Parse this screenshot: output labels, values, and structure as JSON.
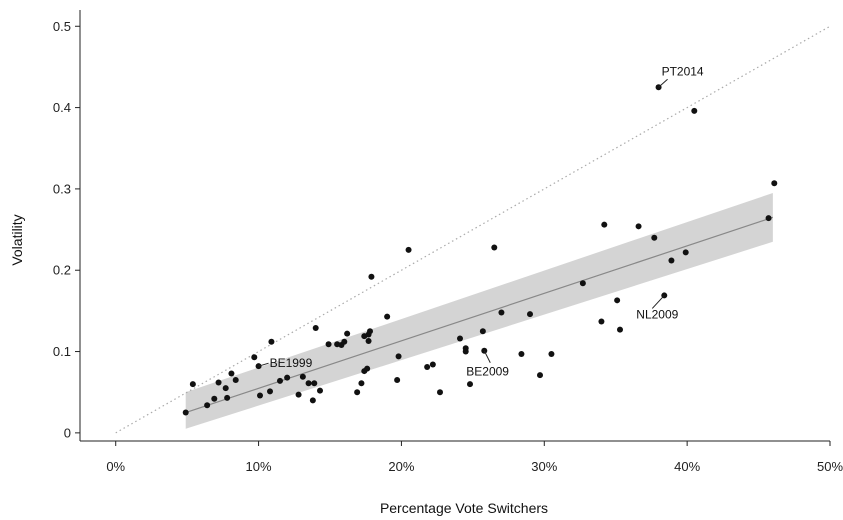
{
  "chart_data": {
    "type": "scatter",
    "xlabel": "Percentage Vote Switchers",
    "ylabel": "Volatility",
    "xlim": [
      -0.025,
      0.5
    ],
    "ylim": [
      -0.01,
      0.52
    ],
    "x_ticks": [
      0,
      0.1,
      0.2,
      0.3,
      0.4,
      0.5
    ],
    "x_tick_labels": [
      "0%",
      "10%",
      "20%",
      "30%",
      "40%",
      "50%"
    ],
    "y_ticks": [
      0,
      0.1,
      0.2,
      0.3,
      0.4,
      0.5
    ],
    "y_tick_labels": [
      "0",
      "0.1",
      "0.2",
      "0.3",
      "0.4",
      "0.5"
    ],
    "grid": false,
    "colors": {
      "points": "#111111",
      "fit_line": "#888888",
      "band": "#d4d4d4",
      "reference_line": "#aaaaaa"
    },
    "reference_line": {
      "style": "dotted",
      "x": [
        0,
        0.5
      ],
      "y": [
        0,
        0.5
      ]
    },
    "fit": {
      "x": [
        0.049,
        0.46
      ],
      "y": [
        0.025,
        0.265
      ]
    },
    "confidence_band": {
      "x": [
        0.049,
        0.46
      ],
      "lower": [
        0.005,
        0.235
      ],
      "upper": [
        0.05,
        0.295
      ]
    },
    "points": [
      {
        "x": 0.049,
        "y": 0.025
      },
      {
        "x": 0.054,
        "y": 0.06
      },
      {
        "x": 0.064,
        "y": 0.034
      },
      {
        "x": 0.069,
        "y": 0.042
      },
      {
        "x": 0.072,
        "y": 0.062
      },
      {
        "x": 0.077,
        "y": 0.055
      },
      {
        "x": 0.078,
        "y": 0.043
      },
      {
        "x": 0.081,
        "y": 0.073
      },
      {
        "x": 0.084,
        "y": 0.065
      },
      {
        "x": 0.097,
        "y": 0.093
      },
      {
        "x": 0.1,
        "y": 0.082
      },
      {
        "x": 0.101,
        "y": 0.046
      },
      {
        "x": 0.108,
        "y": 0.051
      },
      {
        "x": 0.109,
        "y": 0.112
      },
      {
        "x": 0.115,
        "y": 0.064
      },
      {
        "x": 0.12,
        "y": 0.068
      },
      {
        "x": 0.128,
        "y": 0.047
      },
      {
        "x": 0.131,
        "y": 0.069
      },
      {
        "x": 0.135,
        "y": 0.061
      },
      {
        "x": 0.138,
        "y": 0.04
      },
      {
        "x": 0.139,
        "y": 0.061
      },
      {
        "x": 0.14,
        "y": 0.129
      },
      {
        "x": 0.143,
        "y": 0.052
      },
      {
        "x": 0.149,
        "y": 0.109
      },
      {
        "x": 0.155,
        "y": 0.109
      },
      {
        "x": 0.158,
        "y": 0.108
      },
      {
        "x": 0.16,
        "y": 0.112
      },
      {
        "x": 0.162,
        "y": 0.122
      },
      {
        "x": 0.169,
        "y": 0.05
      },
      {
        "x": 0.172,
        "y": 0.061
      },
      {
        "x": 0.174,
        "y": 0.076
      },
      {
        "x": 0.174,
        "y": 0.119
      },
      {
        "x": 0.176,
        "y": 0.079
      },
      {
        "x": 0.177,
        "y": 0.121
      },
      {
        "x": 0.177,
        "y": 0.113
      },
      {
        "x": 0.178,
        "y": 0.125
      },
      {
        "x": 0.179,
        "y": 0.192
      },
      {
        "x": 0.19,
        "y": 0.143
      },
      {
        "x": 0.197,
        "y": 0.065
      },
      {
        "x": 0.198,
        "y": 0.094
      },
      {
        "x": 0.205,
        "y": 0.225
      },
      {
        "x": 0.218,
        "y": 0.081
      },
      {
        "x": 0.222,
        "y": 0.084
      },
      {
        "x": 0.227,
        "y": 0.05
      },
      {
        "x": 0.241,
        "y": 0.116
      },
      {
        "x": 0.245,
        "y": 0.104
      },
      {
        "x": 0.245,
        "y": 0.1
      },
      {
        "x": 0.248,
        "y": 0.06
      },
      {
        "x": 0.257,
        "y": 0.125
      },
      {
        "x": 0.258,
        "y": 0.101
      },
      {
        "x": 0.265,
        "y": 0.228
      },
      {
        "x": 0.27,
        "y": 0.148
      },
      {
        "x": 0.284,
        "y": 0.097
      },
      {
        "x": 0.29,
        "y": 0.146
      },
      {
        "x": 0.297,
        "y": 0.071
      },
      {
        "x": 0.305,
        "y": 0.097
      },
      {
        "x": 0.327,
        "y": 0.184
      },
      {
        "x": 0.34,
        "y": 0.137
      },
      {
        "x": 0.342,
        "y": 0.256
      },
      {
        "x": 0.351,
        "y": 0.163
      },
      {
        "x": 0.353,
        "y": 0.127
      },
      {
        "x": 0.366,
        "y": 0.254
      },
      {
        "x": 0.377,
        "y": 0.24
      },
      {
        "x": 0.38,
        "y": 0.425
      },
      {
        "x": 0.384,
        "y": 0.169
      },
      {
        "x": 0.389,
        "y": 0.212
      },
      {
        "x": 0.399,
        "y": 0.222
      },
      {
        "x": 0.405,
        "y": 0.396
      },
      {
        "x": 0.457,
        "y": 0.264
      },
      {
        "x": 0.461,
        "y": 0.307
      }
    ],
    "annotations": [
      {
        "label": "PT2014",
        "x": 0.38,
        "y": 0.425,
        "anchor": "upper-right"
      },
      {
        "label": "NL2009",
        "x": 0.384,
        "y": 0.169,
        "anchor": "lower-left"
      },
      {
        "label": "BE1999",
        "x": 0.1,
        "y": 0.082,
        "anchor": "right"
      },
      {
        "label": "BE2009",
        "x": 0.258,
        "y": 0.101,
        "anchor": "below"
      }
    ]
  }
}
